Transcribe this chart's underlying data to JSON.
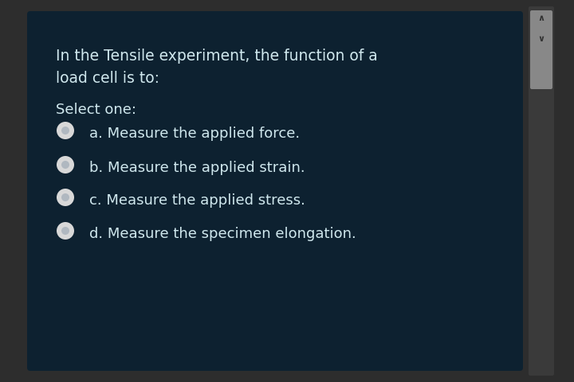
{
  "bg_outer": "#2d2d2d",
  "bg_card": "#0d2130",
  "text_color": "#d0e8ee",
  "question_line1": "In the Tensile experiment, the function of a",
  "question_line2": "load cell is to:",
  "select_label": "Select one:",
  "options": [
    "a. Measure the applied force.",
    "b. Measure the applied strain.",
    "c. Measure the applied stress.",
    "d. Measure the specimen elongation."
  ],
  "bullet_fill": "#d8d8d8",
  "bullet_edge": "#aaaaaa",
  "scrollbar_bg": "#888888",
  "scrollbar_track": "#3a3a3a",
  "font_size_question": 13.5,
  "font_size_options": 13,
  "font_size_select": 13
}
